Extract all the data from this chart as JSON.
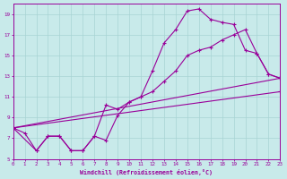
{
  "bg_color": "#c8eaea",
  "grid_color": "#a8d4d4",
  "line_color": "#990099",
  "xlabel": "Windchill (Refroidissement éolien,°C)",
  "xlim": [
    0,
    23
  ],
  "ylim": [
    5,
    20
  ],
  "xticks": [
    0,
    1,
    2,
    3,
    4,
    5,
    6,
    7,
    8,
    9,
    10,
    11,
    12,
    13,
    14,
    15,
    16,
    17,
    18,
    19,
    20,
    21,
    22,
    23
  ],
  "yticks": [
    5,
    7,
    9,
    11,
    13,
    15,
    17,
    19
  ],
  "line1_x": [
    0,
    1,
    2,
    3,
    4,
    5,
    6,
    7,
    8,
    9,
    10,
    11,
    12,
    13,
    14,
    15,
    16,
    17,
    18,
    19,
    20,
    21,
    22,
    23
  ],
  "line1_y": [
    8.0,
    7.5,
    5.8,
    7.2,
    7.2,
    5.8,
    5.8,
    7.2,
    6.8,
    9.2,
    10.5,
    11.0,
    13.5,
    16.2,
    17.5,
    19.3,
    19.5,
    18.5,
    18.2,
    18.0,
    15.5,
    15.2,
    13.2,
    12.8
  ],
  "line2_x": [
    0,
    2,
    3,
    4,
    5,
    6,
    7,
    8,
    9,
    10,
    11,
    12,
    13,
    14,
    15,
    16,
    17,
    18,
    19,
    20,
    21,
    22,
    23
  ],
  "line2_y": [
    8.0,
    5.8,
    7.2,
    7.2,
    5.8,
    5.8,
    7.2,
    10.2,
    9.8,
    10.5,
    11.0,
    11.5,
    12.5,
    13.5,
    15.0,
    15.5,
    15.8,
    16.5,
    17.0,
    17.5,
    15.2,
    13.2,
    12.8
  ],
  "line3_x": [
    0,
    23
  ],
  "line3_y": [
    8.0,
    12.8
  ],
  "line4_x": [
    0,
    23
  ],
  "line4_y": [
    8.0,
    12.8
  ]
}
